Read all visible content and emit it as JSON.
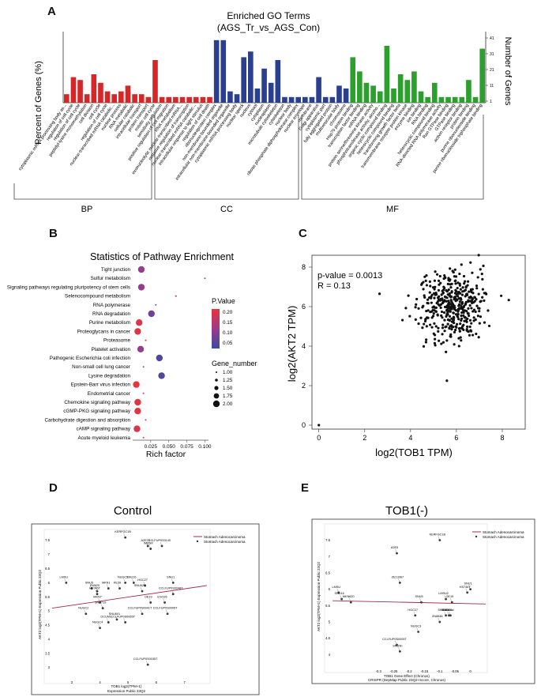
{
  "panels": {
    "A": "A",
    "B": "B",
    "C": "C",
    "D": "D",
    "E": "E"
  },
  "panelA": {
    "title_line1": "Enriched GO Terms",
    "title_line2": "(AGS_Tr_vs_AGS_Con)",
    "ylabel_left": "Percent of Genes (%)",
    "ylabel_right": "Number of Genes",
    "group_labels": [
      "BP",
      "CC",
      "MF"
    ],
    "colors": {
      "BP": "#d62728",
      "CC": "#2a3f8f",
      "MF": "#2ca02c"
    }
  },
  "panelB": {
    "title": "Statistics of Pathway Enrichment",
    "xlabel": "Rich factor",
    "legend_pvalue_title": "P.Value",
    "legend_gene_title": "Gene_number",
    "colorbar_ticks": [
      "0.20",
      "0.15",
      "0.10",
      "0.05"
    ],
    "size_ticks": [
      "1.00",
      "1.25",
      "1.50",
      "1.75",
      "2.00"
    ]
  },
  "panelC": {
    "pvalue_text": "p-value = 0.0013",
    "r_text": "R = 0.13",
    "xlabel": "log2(TOB1 TPM)",
    "ylabel": "log2(AKT2 TPM)"
  },
  "panelD": {
    "title": "Control",
    "legend_line": "Stomach Adenocarcinoma",
    "legend_dot": "Stomach Adenocarcinoma",
    "xlabel1": "TOB1 log2(TPM+1)",
    "xlabel2": "Expression Public 23Q2",
    "ylabel": "AKT2 log2(TPM+1) Expression Public 23Q2"
  },
  "panelE": {
    "title": "TOB1(-)",
    "legend_line": "Stomach Adenocarcinoma",
    "legend_dot": "Stomach Adenocarcinoma",
    "xlabel1": "TOB1 Gene Effect (Chronos)",
    "xlabel2": "CRISPR (DepMap Public 23Q2+Score, Chronos)",
    "ylabel": "AKT2 log2(TPM+1) Expression Public 23Q2"
  },
  "chart_data": [
    {
      "type": "bar",
      "title": "Enriched GO Terms (AGS_Tr_vs_AGS_Con)",
      "ylabel": "Percent of Genes (%)",
      "y2label": "Number of Genes",
      "right_ticks": [
        "41",
        "31",
        "21",
        "11",
        "1"
      ],
      "categories": [
        "cytoplasmic mRNA processing body as...",
        "regulation of cell cycle",
        "regulation of cell cycle",
        "peptidyl-lysine monomethylation",
        "cell division",
        "cell cycle",
        "regulation of cell cycle",
        "nuclear-transcribed mRNA catabolic...",
        "nuclear process",
        "RNA metabolic",
        "cellular catabolic",
        "intracellular transport",
        "protein transport",
        "mitotic cell cycle",
        "sensitivity regulation",
        "positive regulation of cell migration",
        "RNA metabolism",
        "exonucleolytic nuclear-transcribed mRNA...",
        "negative regulation of transcription",
        "nuclear-transcribed mRNA catabolic...",
        "intracellular response to light stimulus",
        "regulation of cell death",
        "ribonucleoprotein complex",
        "non-membrane-bounded organelle",
        "intracellular non-membrane-bounded organelle",
        "cytoplasmic mRNA processing body",
        "nuclear speck",
        "nucleus",
        "cytosol",
        "cytoplasm",
        "nucleoplasm",
        "microtubule cytoskeleton",
        "cytoskeleton",
        "nuclear body",
        "ribose phosphate diphosphokinase complex",
        "nuclear envelope",
        "membrane",
        "Golgi apparatus",
        "cytoplasmic part",
        "fully aggregated protein",
        "multivesicular body",
        "chromosome",
        "Hsp70 protein binding",
        "transcription factor binding",
        "mRNA binding",
        "protein serine/threonine kinase activity",
        "phosphotransferase activity, alcoho...",
        "organic cyclic compound binding",
        "heterocyclic compound binding",
        "transforming growth factor beta",
        "transmembrane receptor protein kinase",
        "enzyme binding",
        "ion binding",
        "RNA binding",
        "heterocyclic compound binding",
        "RNA-directed RNA polymerase activity",
        "Ran GTPase binding",
        "GTPase binding",
        "activin receptor binding",
        "protein binding",
        "purine ribonucleoside binding",
        "purine ribonucleoside triphosphate binding"
      ],
      "groups": [
        "BP",
        "BP",
        "BP",
        "BP",
        "BP",
        "BP",
        "BP",
        "BP",
        "BP",
        "BP",
        "BP",
        "BP",
        "BP",
        "BP",
        "BP",
        "BP",
        "BP",
        "BP",
        "BP",
        "BP",
        "BP",
        "BP",
        "CC",
        "CC",
        "CC",
        "CC",
        "CC",
        "CC",
        "CC",
        "CC",
        "CC",
        "CC",
        "CC",
        "CC",
        "CC",
        "CC",
        "CC",
        "CC",
        "CC",
        "CC",
        "CC",
        "CC",
        "MF",
        "MF",
        "MF",
        "MF",
        "MF",
        "MF",
        "MF",
        "MF",
        "MF",
        "MF",
        "MF",
        "MF",
        "MF",
        "MF",
        "MF",
        "MF",
        "MF",
        "MF",
        "MF",
        "MF"
      ],
      "values": [
        3,
        9,
        8,
        3,
        10,
        7,
        4,
        3,
        4,
        6,
        3,
        3,
        2,
        15,
        2,
        2,
        2,
        2,
        2,
        2,
        2,
        2,
        22,
        22,
        4,
        3,
        16,
        18,
        5,
        12,
        7,
        15,
        2,
        2,
        2,
        2,
        2,
        9,
        2,
        2,
        6,
        5,
        16,
        11,
        7,
        6,
        4,
        20,
        5,
        10,
        8,
        11,
        4,
        2,
        7,
        2,
        2,
        2,
        2,
        8,
        2,
        19
      ]
    },
    {
      "type": "scatter",
      "title": "Statistics of Pathway Enrichment",
      "xlabel": "Rich factor",
      "xticks": [
        "0.025",
        "0.050",
        "0.075",
        "0.100"
      ],
      "xlim": [
        0,
        0.105
      ],
      "legend": "right",
      "pathways": [
        "Tight junction",
        "Sulfur metabolism",
        "Signaling pathways regulating pluripotency of stem cells",
        "Selenocompound metabolism",
        "RNA polymerase",
        "RNA degradation",
        "Purine metabolism",
        "Proteoglycans in cancer",
        "Proteasome",
        "Platelet activation",
        "Pathogenic Escherichia coli infection",
        "Non-small cell lung cancer",
        "Lysine degradation",
        "Epstein-Barr virus infection",
        "Endometrial cancer",
        "Chemokine signaling pathway",
        "cGMP-PKG signaling pathway",
        "Carbohydrate digestion and absorption",
        "cAMP signaling pathway",
        "Acute myeloid leukemia"
      ],
      "rich_factor": [
        0.012,
        0.1,
        0.012,
        0.06,
        0.032,
        0.026,
        0.009,
        0.007,
        0.018,
        0.011,
        0.037,
        0.015,
        0.04,
        0.005,
        0.015,
        0.007,
        0.007,
        0.018,
        0.006,
        0.015
      ],
      "p_value": [
        0.12,
        0.2,
        0.12,
        0.15,
        0.1,
        0.08,
        0.2,
        0.21,
        0.19,
        0.12,
        0.05,
        0.15,
        0.05,
        0.22,
        0.2,
        0.21,
        0.21,
        0.19,
        0.2,
        0.2
      ],
      "gene_number": [
        2,
        1,
        2,
        1,
        1,
        2,
        2,
        2,
        1,
        2,
        2,
        1,
        2,
        2,
        1,
        2,
        2,
        1,
        2,
        1
      ]
    },
    {
      "type": "scatter",
      "xlabel": "log2(TOB1 TPM)",
      "ylabel": "log2(AKT2 TPM)",
      "xlim": [
        -0.3,
        9
      ],
      "ylim": [
        -0.2,
        8.6
      ],
      "xticks": [
        "0",
        "2",
        "4",
        "6",
        "8"
      ],
      "yticks": [
        "0",
        "2",
        "4",
        "6",
        "8"
      ],
      "cloud_center": [
        5.8,
        6.0
      ],
      "cloud_spread": [
        0.75,
        0.85
      ],
      "n_points": 420,
      "outlier": [
        0,
        0
      ]
    },
    {
      "type": "scatter",
      "title": "Control",
      "xlim": [
        2.3,
        7.8
      ],
      "ylim": [
        2.6,
        7.8
      ],
      "xticks": [
        "3",
        "4",
        "5",
        "6",
        "7"
      ],
      "yticks": [
        "3",
        "3.5",
        "4",
        "4.5",
        "5",
        "5.5",
        "6",
        "6.5",
        "7",
        "7.5"
      ],
      "points": [
        {
          "label": "KERFGC1B",
          "x": 4.9,
          "y": 7.6
        },
        {
          "label": "A2E20",
          "x": 5.7,
          "y": 7.3
        },
        {
          "label": "CCLFUP0S0140",
          "x": 6.2,
          "y": 7.3
        },
        {
          "label": "IM95M",
          "x": 5.8,
          "y": 7.2
        },
        {
          "label": "LMSU",
          "x": 2.8,
          "y": 6.0
        },
        {
          "label": "NUGC3",
          "x": 4.9,
          "y": 6.0
        },
        {
          "label": "SNU16",
          "x": 5.2,
          "y": 6.0
        },
        {
          "label": "HGC27",
          "x": 5.6,
          "y": 5.9
        },
        {
          "label": "SNU5",
          "x": 3.7,
          "y": 5.8
        },
        {
          "label": "KE39",
          "x": 4.7,
          "y": 5.8
        },
        {
          "label": "SNU1",
          "x": 6.6,
          "y": 6.0
        },
        {
          "label": "MKN1",
          "x": 4.3,
          "y": 5.8
        },
        {
          "label": "ZW620",
          "x": 3.9,
          "y": 5.7
        },
        {
          "label": "SNU620",
          "x": 5.5,
          "y": 5.7
        },
        {
          "label": "HS746T",
          "x": 3.9,
          "y": 5.6
        },
        {
          "label": "CCLFUP0S0048T",
          "x": 6.6,
          "y": 5.6
        },
        {
          "label": "MKN7",
          "x": 4.0,
          "y": 5.3
        },
        {
          "label": "SNU719",
          "x": 4.1,
          "y": 5.1
        },
        {
          "label": "OE19",
          "x": 5.8,
          "y": 5.3
        },
        {
          "label": "ESO26",
          "x": 6.3,
          "y": 5.3
        },
        {
          "label": "NUGC2",
          "x": 3.5,
          "y": 4.9
        },
        {
          "label": "CCLFUP0S0041T",
          "x": 5.5,
          "y": 4.9
        },
        {
          "label": "CCLFUP0S0005T",
          "x": 6.4,
          "y": 4.9
        },
        {
          "label": "CCLFUP0S0065T",
          "x": 4.9,
          "y": 4.6
        },
        {
          "label": "SNU601",
          "x": 4.6,
          "y": 4.7
        },
        {
          "label": "OCUM1",
          "x": 4.3,
          "y": 4.6
        },
        {
          "label": "NUGC4",
          "x": 4.0,
          "y": 4.4
        },
        {
          "label": "CCLFUP0S0035T",
          "x": 5.7,
          "y": 3.1
        }
      ],
      "trend": [
        [
          2.3,
          5.1
        ],
        [
          7.8,
          5.9
        ]
      ]
    },
    {
      "type": "scatter",
      "title": "TOB1(-)",
      "xlim": [
        -0.45,
        0.05
      ],
      "ylim": [
        3.6,
        7.9
      ],
      "xticks": [
        "-0.3",
        "-0.25",
        "-0.2",
        "-0.15",
        "-0.1",
        "-0.05",
        "0"
      ],
      "yticks": [
        "4",
        "4.5",
        "5",
        "5.5",
        "6",
        "6.5",
        "7",
        "7.5"
      ],
      "points": [
        {
          "label": "KERFGC1B",
          "x": -0.1,
          "y": 7.5
        },
        {
          "label": "A2E5",
          "x": -0.24,
          "y": 7.1
        },
        {
          "label": "SNU1",
          "x": 0.0,
          "y": 6.0
        },
        {
          "label": "HS746T",
          "x": -0.01,
          "y": 5.9
        },
        {
          "label": "LMSU",
          "x": -0.43,
          "y": 5.9
        },
        {
          "label": "SNU16",
          "x": -0.42,
          "y": 5.7
        },
        {
          "label": "MKN620",
          "x": -0.39,
          "y": 5.6
        },
        {
          "label": "LMSU2",
          "x": -0.08,
          "y": 5.7
        },
        {
          "label": "OE19",
          "x": -0.06,
          "y": 5.6
        },
        {
          "label": "SNU5",
          "x": -0.16,
          "y": 5.6
        },
        {
          "label": "ZE13067",
          "x": -0.23,
          "y": 6.2
        },
        {
          "label": "HGC27",
          "x": -0.18,
          "y": 5.2
        },
        {
          "label": "ZN8648",
          "x": -0.1,
          "y": 5.0
        },
        {
          "label": "NUGC3",
          "x": -0.17,
          "y": 4.7
        },
        {
          "label": "CCLFUP0S0005T",
          "x": -0.24,
          "y": 4.3
        },
        {
          "label": "SNU5b",
          "x": -0.23,
          "y": 4.1
        },
        {
          "label": "SNU16b",
          "x": -0.08,
          "y": 5.2
        },
        {
          "label": "SNU16c",
          "x": -0.07,
          "y": 5.2
        },
        {
          "label": "SNU16d",
          "x": -0.065,
          "y": 5.2
        }
      ],
      "trend": [
        [
          -0.45,
          5.65
        ],
        [
          0.05,
          5.55
        ]
      ]
    }
  ]
}
